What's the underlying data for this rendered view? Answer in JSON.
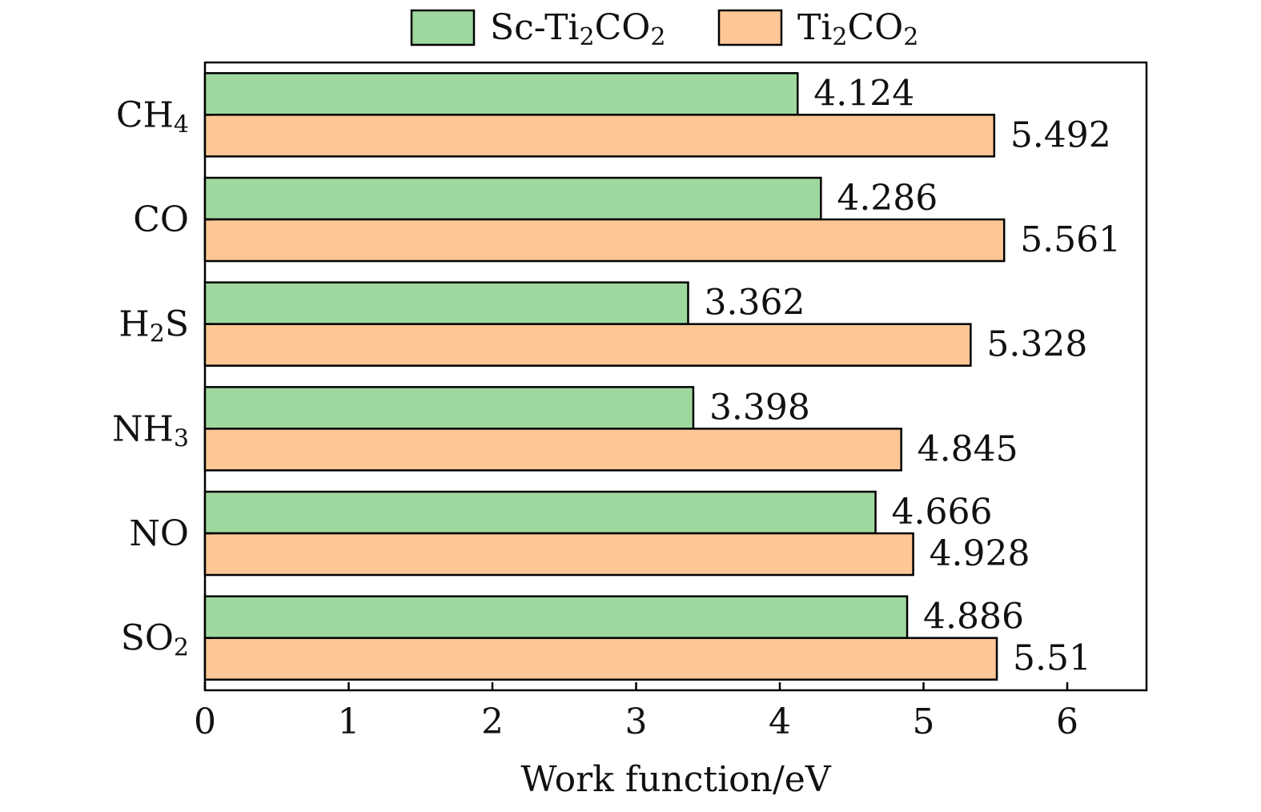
{
  "chart_data": {
    "type": "bar",
    "orientation": "horizontal",
    "title": "",
    "xlabel": "Work function/eV",
    "ylabel": "",
    "xlim": [
      0,
      6.55
    ],
    "xticks": [
      0,
      1,
      2,
      3,
      4,
      5,
      6
    ],
    "grid": false,
    "legend_position": "top-center",
    "categories": [
      {
        "base": "CH",
        "sub": "4"
      },
      {
        "base": "CO",
        "sub": ""
      },
      {
        "base": "H",
        "sub": "2",
        "tail": "S"
      },
      {
        "base": "NH",
        "sub": "3"
      },
      {
        "base": "NO",
        "sub": ""
      },
      {
        "base": "SO",
        "sub": "2"
      }
    ],
    "series": [
      {
        "name": "Sc-Ti2CO2",
        "label_parts": [
          {
            "t": "Sc-Ti",
            "sub": false
          },
          {
            "t": "2",
            "sub": true
          },
          {
            "t": "CO",
            "sub": false
          },
          {
            "t": "2",
            "sub": true
          }
        ],
        "color": "#9fd89f",
        "values": [
          4.124,
          4.286,
          3.362,
          3.398,
          4.666,
          4.886
        ],
        "value_labels": [
          "4.124",
          "4.286",
          "3.362",
          "3.398",
          "4.666",
          "4.886"
        ]
      },
      {
        "name": "Ti2CO2",
        "label_parts": [
          {
            "t": "Ti",
            "sub": false
          },
          {
            "t": "2",
            "sub": true
          },
          {
            "t": "CO",
            "sub": false
          },
          {
            "t": "2",
            "sub": true
          }
        ],
        "color": "#fcc795",
        "values": [
          5.492,
          5.561,
          5.328,
          4.845,
          4.928,
          5.51
        ],
        "value_labels": [
          "5.492",
          "5.561",
          "5.328",
          "4.845",
          "4.928",
          "5.51"
        ]
      }
    ]
  }
}
